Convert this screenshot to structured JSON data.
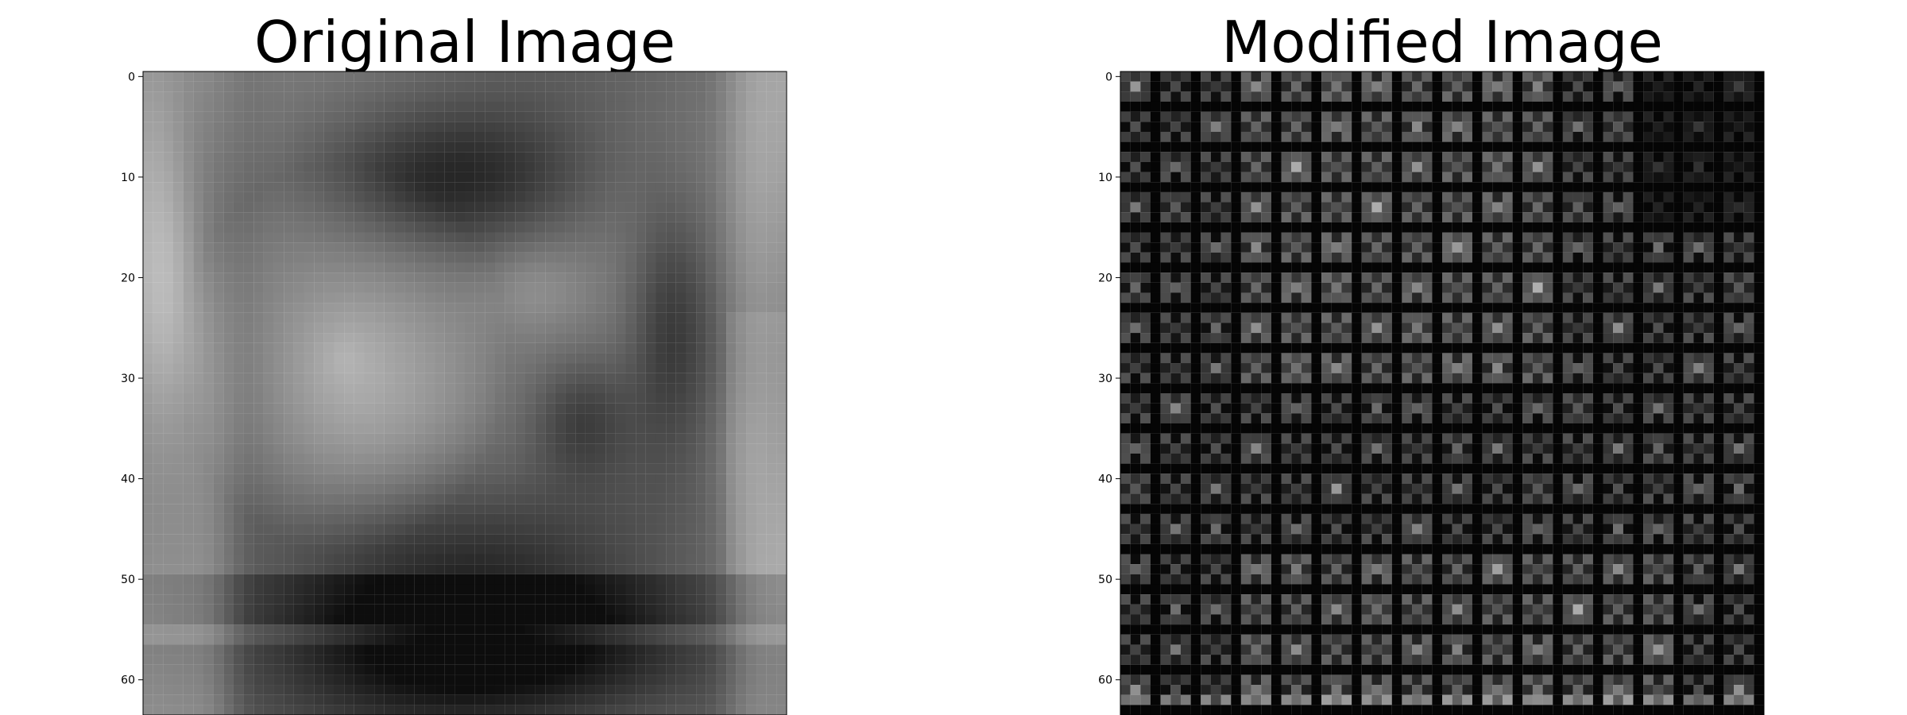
{
  "chart_data": [
    {
      "type": "heatmap",
      "title": "Original Image",
      "grid": false,
      "colormap": "gray",
      "image_rows": 64,
      "image_cols": 64,
      "xlim": [
        -0.5,
        63.5
      ],
      "ylim": [
        63.5,
        -0.5
      ],
      "yticks": [
        0,
        10,
        20,
        30,
        40,
        50,
        60
      ],
      "ytick_labels": [
        "0",
        "10",
        "20",
        "30",
        "40",
        "50",
        "60"
      ]
    },
    {
      "type": "heatmap",
      "title": "Modified Image",
      "grid": false,
      "colormap": "gray",
      "image_rows": 64,
      "image_cols": 64,
      "xlim": [
        -0.5,
        63.5
      ],
      "ylim": [
        63.5,
        -0.5
      ],
      "yticks": [
        0,
        10,
        20,
        30,
        40,
        50,
        60
      ],
      "ytick_labels": [
        "0",
        "10",
        "20",
        "30",
        "40",
        "50",
        "60"
      ]
    }
  ]
}
